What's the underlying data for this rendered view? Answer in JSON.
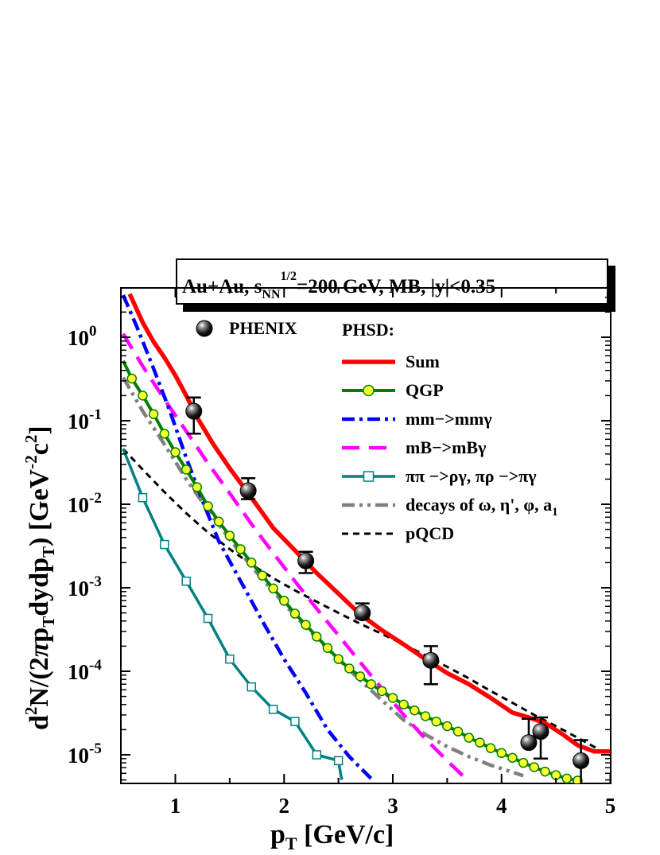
{
  "chart_data": {
    "type": "line",
    "title": {
      "parts": [
        "Au+Au, s",
        "NN",
        "1/2",
        "=200 GeV, MB, |y|<0.35"
      ]
    },
    "xlabel": {
      "main": "p",
      "sub": "T",
      "unit": " [GeV/c]"
    },
    "ylabel": {
      "parts": [
        "d",
        "2",
        "N/(2",
        "π",
        "p",
        "T",
        "dydp",
        "T",
        ")  [GeV",
        "-2",
        "c",
        "2",
        "]"
      ]
    },
    "xlim": [
      0.5,
      5.0
    ],
    "ylim": [
      5e-06,
      4
    ],
    "yscale": "log",
    "x_ticks": [
      1,
      2,
      3,
      4,
      5
    ],
    "x_tick_labels": [
      "1",
      "2",
      "3",
      "4",
      "5"
    ],
    "y_ticks": [
      1,
      0.1,
      0.01,
      0.001,
      0.0001,
      1e-05
    ],
    "y_tick_labels": [
      {
        "base": "10",
        "exp": "0"
      },
      {
        "base": "10",
        "exp": "-1"
      },
      {
        "base": "10",
        "exp": "-2"
      },
      {
        "base": "10",
        "exp": "-3"
      },
      {
        "base": "10",
        "exp": "-4"
      },
      {
        "base": "10",
        "exp": "-5"
      }
    ],
    "legend": {
      "placement": "top-right",
      "data_label": "PHENIX",
      "model_label": "PHSD:",
      "entries": [
        {
          "label": "Sum",
          "series": "sum"
        },
        {
          "label": "QGP",
          "series": "qgp"
        },
        {
          "label": "mm−>mmγ",
          "series": "mm"
        },
        {
          "label": "mB−>mBγ",
          "series": "mb"
        },
        {
          "label": "ππ −>ργ, πρ −>πγ",
          "series": "pipi"
        },
        {
          "label": "decays of ω, η', φ, a",
          "label_sub": "1",
          "series": "decays"
        },
        {
          "label": "pQCD",
          "series": "pqcd"
        }
      ]
    },
    "data_points": {
      "name": "PHENIX",
      "x": [
        1.17,
        1.67,
        2.2,
        2.72,
        3.35,
        4.25,
        4.36,
        4.73
      ],
      "y": [
        0.13,
        0.0145,
        0.0021,
        0.0005,
        0.000135,
        1.4e-05,
        1.9e-05,
        8.5e-06
      ],
      "y_err_low": [
        0.07,
        0.0115,
        0.0015,
        0.00043,
        7e-05,
        1.4e-05,
        9e-06,
        3.5e-06
      ],
      "y_err_high": [
        0.19,
        0.0205,
        0.0027,
        0.00065,
        0.0002,
        2.7e-05,
        2.8e-05,
        1.5e-05
      ]
    },
    "series": [
      {
        "id": "sum",
        "color": "#ff0000",
        "x": [
          0.58,
          0.7,
          0.8,
          0.9,
          1.0,
          1.1,
          1.2,
          1.35,
          1.5,
          1.7,
          1.9,
          2.1,
          2.3,
          2.5,
          2.7,
          2.9,
          3.1,
          3.3,
          3.5,
          3.7,
          3.9,
          4.1,
          4.25,
          4.4,
          4.55,
          4.7,
          4.85,
          5.0
        ],
        "y": [
          3.3,
          1.5,
          0.88,
          0.57,
          0.35,
          0.2,
          0.11,
          0.052,
          0.027,
          0.012,
          0.0052,
          0.0028,
          0.0015,
          0.00085,
          0.00048,
          0.00031,
          0.00021,
          0.00014,
          9.5e-05,
          7e-05,
          4.8e-05,
          3.2e-05,
          2.8e-05,
          2.4e-05,
          1.8e-05,
          1.3e-05,
          1.1e-05,
          1.1e-05
        ]
      },
      {
        "id": "qgp",
        "color": "#008000",
        "x": [
          0.52,
          0.6,
          0.7,
          0.8,
          0.9,
          1.0,
          1.1,
          1.2,
          1.3,
          1.4,
          1.5,
          1.6,
          1.7,
          1.8,
          1.9,
          2.0,
          2.1,
          2.2,
          2.3,
          2.4,
          2.5,
          2.6,
          2.7,
          2.8,
          2.9,
          3.0,
          3.1,
          3.2,
          3.3,
          3.4,
          3.5,
          3.6,
          3.7,
          3.8,
          3.9,
          4.0,
          4.1,
          4.2,
          4.3,
          4.4,
          4.5,
          4.6,
          4.7
        ],
        "y": [
          0.52,
          0.32,
          0.2,
          0.12,
          0.07,
          0.042,
          0.026,
          0.016,
          0.0095,
          0.0062,
          0.0042,
          0.0029,
          0.002,
          0.0014,
          0.00098,
          0.0007,
          0.00049,
          0.00036,
          0.00026,
          0.00019,
          0.00014,
          0.000108,
          8.7e-05,
          7e-05,
          5.8e-05,
          4.8e-05,
          4e-05,
          3.4e-05,
          2.9e-05,
          2.5e-05,
          2.2e-05,
          1.9e-05,
          1.6e-05,
          1.4e-05,
          1.2e-05,
          1.05e-05,
          9.2e-06,
          8e-06,
          7.1e-06,
          6.3e-06,
          5.7e-06,
          5.2e-06,
          4.9e-06
        ]
      },
      {
        "id": "mm",
        "color": "#0000ff",
        "x": [
          0.52,
          0.65,
          0.8,
          0.95,
          1.1,
          1.25,
          1.4,
          1.6,
          1.8,
          2.0,
          2.2,
          2.4,
          2.6,
          2.8
        ],
        "y": [
          3.2,
          1.3,
          0.42,
          0.13,
          0.036,
          0.011,
          0.0036,
          0.0012,
          0.0004,
          0.00014,
          5.5e-05,
          2e-05,
          9.5e-06,
          5.2e-06
        ]
      },
      {
        "id": "mb",
        "color": "#ff00ff",
        "x": [
          0.52,
          0.7,
          0.9,
          1.1,
          1.3,
          1.5,
          1.7,
          1.9,
          2.1,
          2.3,
          2.5,
          2.7,
          2.9,
          3.1,
          3.3,
          3.5,
          3.65
        ],
        "y": [
          1.1,
          0.45,
          0.18,
          0.075,
          0.031,
          0.0135,
          0.0058,
          0.0026,
          0.0012,
          0.00056,
          0.00027,
          0.000128,
          6.2e-05,
          3e-05,
          1.55e-05,
          8.5e-06,
          5.5e-06
        ]
      },
      {
        "id": "pipi",
        "color": "#008080",
        "x": [
          0.52,
          0.7,
          0.9,
          1.1,
          1.3,
          1.5,
          1.7,
          1.9,
          2.1,
          2.3,
          2.5,
          2.53
        ],
        "y": [
          0.046,
          0.012,
          0.0033,
          0.0012,
          0.00043,
          0.00014,
          6.5e-05,
          3.5e-05,
          2.5e-05,
          1e-05,
          8.5e-06,
          5e-06
        ]
      },
      {
        "id": "decays",
        "color": "#808080",
        "x": [
          0.52,
          0.7,
          0.9,
          1.1,
          1.3,
          1.5,
          1.7,
          1.9,
          2.1,
          2.3,
          2.5,
          2.7,
          2.9,
          3.1,
          3.3,
          3.5,
          3.7,
          3.9,
          4.1,
          4.2
        ],
        "y": [
          0.33,
          0.13,
          0.052,
          0.02,
          0.0085,
          0.0038,
          0.0018,
          0.0009,
          0.00046,
          0.00025,
          0.00014,
          7.8e-05,
          4.5e-05,
          2.6e-05,
          1.75e-05,
          1.25e-05,
          9.5e-06,
          7.5e-06,
          6.2e-06,
          5.6e-06
        ]
      },
      {
        "id": "pqcd",
        "color": "#000000",
        "x": [
          0.52,
          0.7,
          0.9,
          1.1,
          1.3,
          1.5,
          1.7,
          1.9,
          2.1,
          2.3,
          2.5,
          2.7,
          2.9,
          3.1,
          3.3,
          3.5,
          3.7,
          3.9,
          4.1,
          4.3,
          4.5,
          4.7,
          4.9,
          5.0
        ],
        "y": [
          0.046,
          0.026,
          0.014,
          0.0078,
          0.0046,
          0.0029,
          0.0019,
          0.0013,
          0.00093,
          0.00068,
          0.0005,
          0.00037,
          0.00028,
          0.00021,
          0.000155,
          0.000113,
          8.2e-05,
          5.8e-05,
          4.2e-05,
          3e-05,
          2.2e-05,
          1.6e-05,
          1.15e-05,
          9.8e-06
        ]
      }
    ]
  }
}
